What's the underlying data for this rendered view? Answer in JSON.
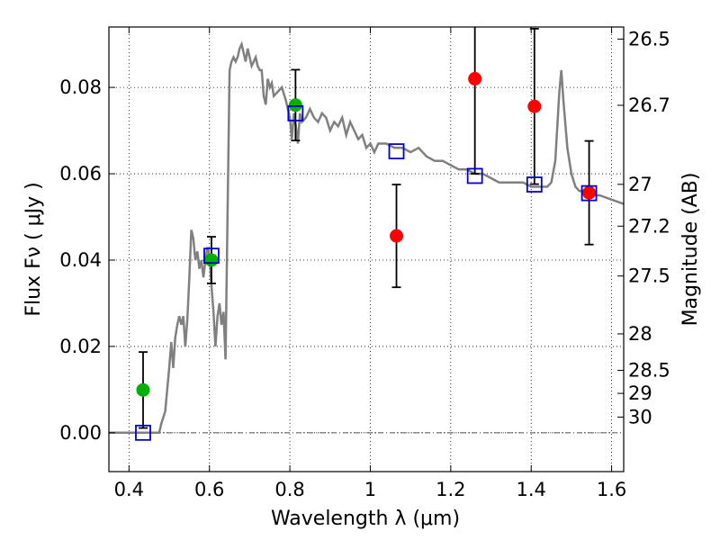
{
  "chart_data": {
    "type": "scatter",
    "title": "",
    "xlabel": "Wavelength  λ (μm)",
    "ylabel": "Flux  Fν  ( μJy )",
    "ylabel_right": "Magnitude (AB)",
    "xlim": [
      0.35,
      1.63
    ],
    "ylim": [
      -0.009,
      0.094
    ],
    "grid": true,
    "x_ticks": [
      0.4,
      0.6,
      0.8,
      1.0,
      1.2,
      1.4,
      1.6
    ],
    "x_tick_labels": [
      "0.4",
      "0.6",
      "0.8",
      "1",
      "1.2",
      "1.4",
      "1.6"
    ],
    "y_ticks": [
      0.0,
      0.02,
      0.04,
      0.06,
      0.08
    ],
    "y_tick_labels": [
      "0.00",
      "0.02",
      "0.04",
      "0.06",
      "0.08"
    ],
    "mag_ticks": [
      {
        "mag": 26.5,
        "label": "26.5"
      },
      {
        "mag": 26.7,
        "label": "26.7"
      },
      {
        "mag": 27.0,
        "label": "27"
      },
      {
        "mag": 27.2,
        "label": "27.2"
      },
      {
        "mag": 27.5,
        "label": "27.5"
      },
      {
        "mag": 28.0,
        "label": "28"
      },
      {
        "mag": 28.5,
        "label": "28.5"
      },
      {
        "mag": 29.0,
        "label": "29"
      },
      {
        "mag": 30.0,
        "label": "30"
      }
    ],
    "colors": {
      "sed": "#808080",
      "green": "#00b000",
      "red": "#ff0000",
      "model": "#0000cc",
      "errorbar": "#000000"
    },
    "sed_curve": [
      [
        0.35,
        0.0
      ],
      [
        0.46,
        0.0
      ],
      [
        0.475,
        0.0
      ],
      [
        0.48,
        0.002
      ],
      [
        0.49,
        0.005
      ],
      [
        0.5,
        0.015
      ],
      [
        0.505,
        0.021
      ],
      [
        0.51,
        0.015
      ],
      [
        0.515,
        0.022
      ],
      [
        0.52,
        0.025
      ],
      [
        0.525,
        0.027
      ],
      [
        0.53,
        0.025
      ],
      [
        0.535,
        0.027
      ],
      [
        0.54,
        0.02
      ],
      [
        0.545,
        0.026
      ],
      [
        0.55,
        0.036
      ],
      [
        0.555,
        0.047
      ],
      [
        0.56,
        0.045
      ],
      [
        0.565,
        0.04
      ],
      [
        0.57,
        0.042
      ],
      [
        0.575,
        0.038
      ],
      [
        0.58,
        0.04
      ],
      [
        0.585,
        0.036
      ],
      [
        0.59,
        0.04
      ],
      [
        0.595,
        0.043
      ],
      [
        0.6,
        0.041
      ],
      [
        0.605,
        0.034
      ],
      [
        0.61,
        0.028
      ],
      [
        0.615,
        0.02
      ],
      [
        0.62,
        0.027
      ],
      [
        0.625,
        0.03
      ],
      [
        0.63,
        0.025
      ],
      [
        0.635,
        0.028
      ],
      [
        0.64,
        0.017
      ],
      [
        0.645,
        0.05
      ],
      [
        0.65,
        0.084
      ],
      [
        0.655,
        0.086
      ],
      [
        0.66,
        0.087
      ],
      [
        0.665,
        0.086
      ],
      [
        0.67,
        0.087
      ],
      [
        0.675,
        0.089
      ],
      [
        0.68,
        0.09
      ],
      [
        0.685,
        0.088
      ],
      [
        0.69,
        0.086
      ],
      [
        0.695,
        0.089
      ],
      [
        0.7,
        0.087
      ],
      [
        0.705,
        0.085
      ],
      [
        0.71,
        0.086
      ],
      [
        0.715,
        0.087
      ],
      [
        0.72,
        0.085
      ],
      [
        0.725,
        0.084
      ],
      [
        0.73,
        0.084
      ],
      [
        0.735,
        0.078
      ],
      [
        0.74,
        0.076
      ],
      [
        0.745,
        0.082
      ],
      [
        0.75,
        0.08
      ],
      [
        0.755,
        0.081
      ],
      [
        0.76,
        0.078
      ],
      [
        0.77,
        0.079
      ],
      [
        0.78,
        0.08
      ],
      [
        0.79,
        0.077
      ],
      [
        0.8,
        0.073
      ],
      [
        0.805,
        0.068
      ],
      [
        0.81,
        0.074
      ],
      [
        0.815,
        0.071
      ],
      [
        0.82,
        0.067
      ],
      [
        0.825,
        0.074
      ],
      [
        0.83,
        0.072
      ],
      [
        0.84,
        0.073
      ],
      [
        0.85,
        0.075
      ],
      [
        0.86,
        0.073
      ],
      [
        0.87,
        0.072
      ],
      [
        0.88,
        0.074
      ],
      [
        0.89,
        0.073
      ],
      [
        0.9,
        0.07
      ],
      [
        0.91,
        0.072
      ],
      [
        0.92,
        0.071
      ],
      [
        0.93,
        0.073
      ],
      [
        0.94,
        0.069
      ],
      [
        0.95,
        0.072
      ],
      [
        0.96,
        0.07
      ],
      [
        0.97,
        0.068
      ],
      [
        0.98,
        0.069
      ],
      [
        0.99,
        0.066
      ],
      [
        1.0,
        0.067
      ],
      [
        1.01,
        0.065
      ],
      [
        1.02,
        0.067
      ],
      [
        1.04,
        0.067
      ],
      [
        1.06,
        0.066
      ],
      [
        1.08,
        0.066
      ],
      [
        1.1,
        0.065
      ],
      [
        1.12,
        0.066
      ],
      [
        1.14,
        0.064
      ],
      [
        1.16,
        0.063
      ],
      [
        1.18,
        0.063
      ],
      [
        1.2,
        0.062
      ],
      [
        1.22,
        0.061
      ],
      [
        1.24,
        0.061
      ],
      [
        1.26,
        0.06
      ],
      [
        1.28,
        0.06
      ],
      [
        1.3,
        0.059
      ],
      [
        1.32,
        0.058
      ],
      [
        1.34,
        0.058
      ],
      [
        1.36,
        0.058
      ],
      [
        1.38,
        0.058
      ],
      [
        1.4,
        0.057
      ],
      [
        1.42,
        0.057
      ],
      [
        1.44,
        0.057
      ],
      [
        1.45,
        0.058
      ],
      [
        1.46,
        0.063
      ],
      [
        1.47,
        0.079
      ],
      [
        1.475,
        0.084
      ],
      [
        1.48,
        0.077
      ],
      [
        1.49,
        0.066
      ],
      [
        1.5,
        0.06
      ],
      [
        1.51,
        0.057
      ],
      [
        1.52,
        0.056
      ],
      [
        1.53,
        0.056
      ],
      [
        1.55,
        0.055
      ],
      [
        1.57,
        0.055
      ],
      [
        1.6,
        0.054
      ],
      [
        1.63,
        0.053
      ]
    ],
    "green_points": [
      {
        "x": 0.435,
        "y": 0.0099,
        "err": 0.0088
      },
      {
        "x": 0.605,
        "y": 0.04,
        "err": 0.0054
      },
      {
        "x": 0.814,
        "y": 0.0759,
        "err": 0.0082
      }
    ],
    "red_points": [
      {
        "x": 1.065,
        "y": 0.0456,
        "err": 0.0119
      },
      {
        "x": 1.26,
        "y": 0.082,
        "err": 0.022
      },
      {
        "x": 1.408,
        "y": 0.0756,
        "err": 0.018
      },
      {
        "x": 1.544,
        "y": 0.0556,
        "err": 0.012
      }
    ],
    "model_points": [
      {
        "x": 0.435,
        "y": 0.0
      },
      {
        "x": 0.605,
        "y": 0.041
      },
      {
        "x": 0.814,
        "y": 0.074
      },
      {
        "x": 1.065,
        "y": 0.0652
      },
      {
        "x": 1.26,
        "y": 0.0595
      },
      {
        "x": 1.408,
        "y": 0.0575
      },
      {
        "x": 1.544,
        "y": 0.0555
      }
    ]
  }
}
